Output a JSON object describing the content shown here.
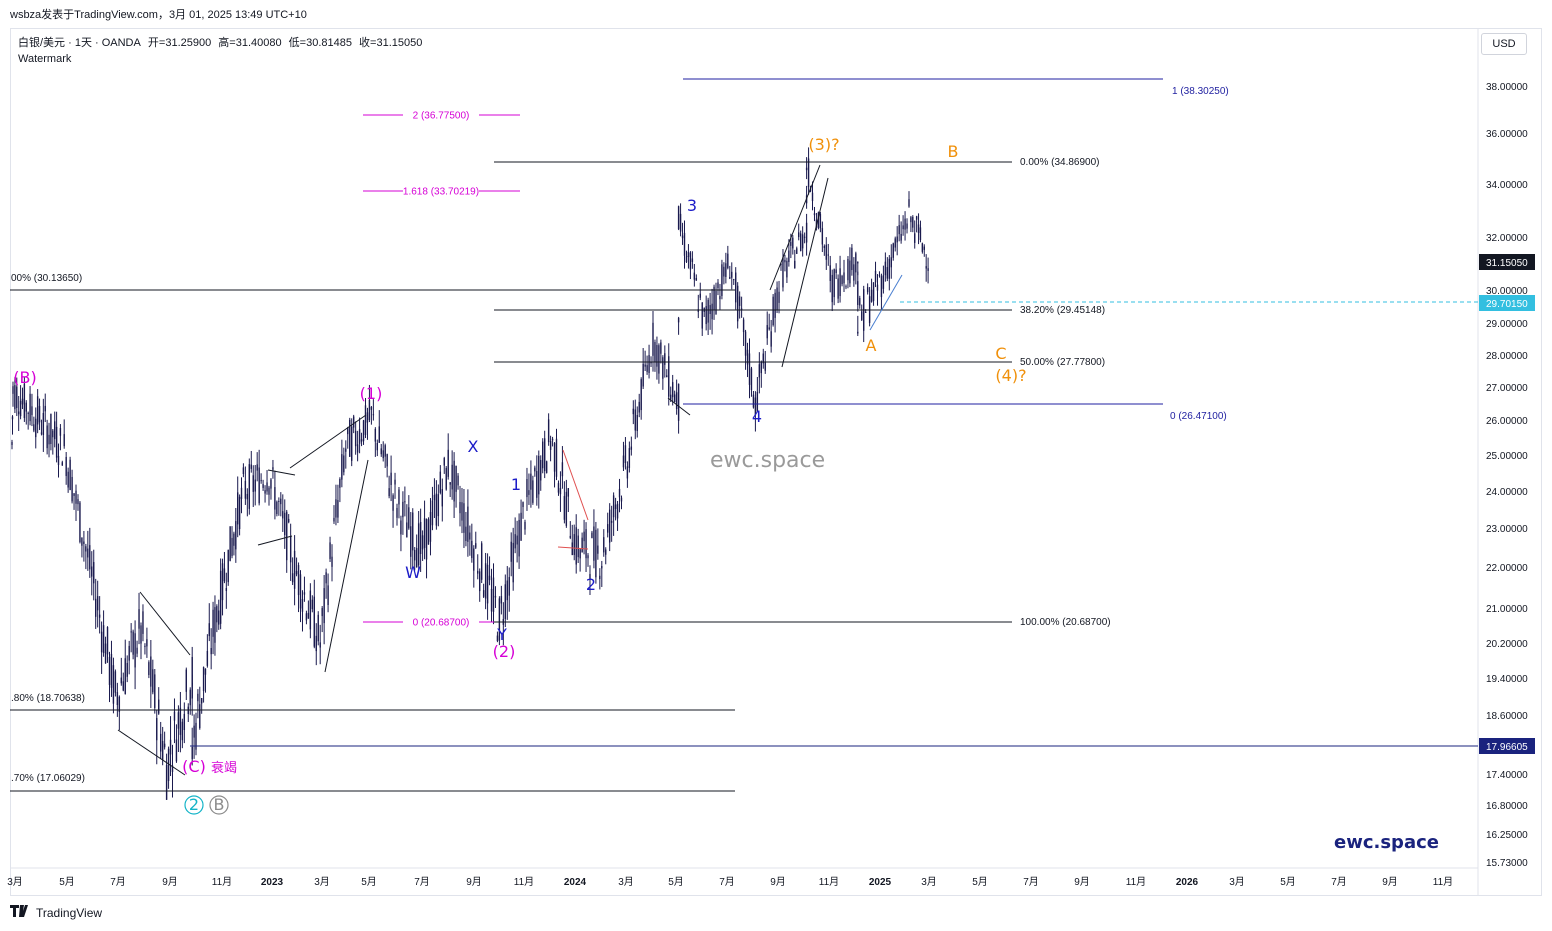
{
  "header": {
    "source_line": "wsbza发表于TradingView.com，3月 01, 2025 13:49 UTC+10"
  },
  "legend": {
    "symbol": "白银/美元 · 1天 · OANDA",
    "open": "开=31.25900",
    "high": "高=31.40080",
    "low": "低=30.81485",
    "close": "收=31.15050",
    "watermark_label": "Watermark"
  },
  "currency_button": "USD",
  "footer": {
    "logo_text": "TradingView",
    "icon": "tradingview-logo-icon"
  },
  "brand_text": "ewc.space",
  "center_watermark": "ewc.space",
  "colors": {
    "candles": "#1a1a4e",
    "fib_black": "#131722",
    "fib_blue": "#1f1fa0",
    "fib_magenta": "#d600d6",
    "wave_blue": "#1c1cc8",
    "wave_orange": "#f0900a",
    "wave_magenta": "#d600d6",
    "wave_teal": "#14b4c8",
    "wave_gray": "#8c8c8c",
    "hline_price": "#1a237e",
    "dashed_price": "#33bfe0"
  },
  "chart_data": {
    "type": "candlestick",
    "symbol": "白银/美元",
    "interval": "1天",
    "y_axis_ticks": [
      "38.00000",
      "36.00000",
      "34.00000",
      "32.00000",
      "30.00000",
      "29.00000",
      "28.00000",
      "27.00000",
      "26.00000",
      "25.00000",
      "24.00000",
      "23.00000",
      "22.00000",
      "21.00000",
      "20.20000",
      "19.40000",
      "18.60000",
      "17.40000",
      "16.80000",
      "16.25000",
      "15.73000"
    ],
    "x_axis_ticks": [
      "3月",
      "5月",
      "7月",
      "9月",
      "11月",
      "2023",
      "3月",
      "5月",
      "7月",
      "9月",
      "11月",
      "2024",
      "3月",
      "5月",
      "7月",
      "9月",
      "11月",
      "2025",
      "3月",
      "5月",
      "7月",
      "9月",
      "11月",
      "2026",
      "3月",
      "5月",
      "7月",
      "9月",
      "11月"
    ],
    "price_labels": [
      {
        "value": "31.15050",
        "style": "last"
      },
      {
        "value": "29.70150",
        "style": "dashed"
      },
      {
        "value": "17.96605",
        "style": "line"
      }
    ],
    "fib_levels": [
      {
        "text": "1 (38.30250)",
        "price": 38.3025,
        "color": "blue"
      },
      {
        "text": "2 (36.77500)",
        "price": 36.775,
        "color": "magenta"
      },
      {
        "text": "0.00% (34.86900)",
        "price": 34.869,
        "color": "black"
      },
      {
        "text": "1.618 (33.70219)",
        "price": 33.70219,
        "color": "magenta"
      },
      {
        "text": "00% (30.13650)",
        "price": 30.1365,
        "color": "black"
      },
      {
        "text": "38.20% (29.45148)",
        "price": 29.45148,
        "color": "black"
      },
      {
        "text": "50.00% (27.77800)",
        "price": 27.778,
        "color": "black"
      },
      {
        "text": "0 (26.47100)",
        "price": 26.471,
        "color": "blue"
      },
      {
        "text": "0 (20.68700)",
        "price": 20.687,
        "color": "magenta"
      },
      {
        "text": "100.00% (20.68700)",
        "price": 20.687,
        "color": "black"
      },
      {
        "text": ".80% (18.70638)",
        "price": 18.70638,
        "color": "black"
      },
      {
        "text": ".70% (17.06029)",
        "price": 17.06029,
        "color": "black"
      }
    ],
    "wave_labels": [
      {
        "text": "(B)",
        "color": "magenta"
      },
      {
        "text": "(1)",
        "color": "magenta"
      },
      {
        "text": "(2)",
        "color": "magenta"
      },
      {
        "text": "(C)",
        "color": "magenta"
      },
      {
        "text": "衰竭",
        "color": "magenta"
      },
      {
        "text": "(3)?",
        "color": "orange"
      },
      {
        "text": "(4)?",
        "color": "orange"
      },
      {
        "text": "A",
        "color": "orange"
      },
      {
        "text": "B",
        "color": "orange"
      },
      {
        "text": "C",
        "color": "orange"
      },
      {
        "text": "1",
        "color": "blue"
      },
      {
        "text": "2",
        "color": "blue"
      },
      {
        "text": "3",
        "color": "blue"
      },
      {
        "text": "4",
        "color": "blue"
      },
      {
        "text": "W",
        "color": "blue"
      },
      {
        "text": "X",
        "color": "blue"
      },
      {
        "text": "Y",
        "color": "blue"
      },
      {
        "text": "2",
        "color": "teal"
      },
      {
        "text": "B",
        "color": "gray"
      }
    ],
    "path_points": [
      {
        "date": "2022-03",
        "price": 25.3
      },
      {
        "date": "2022-03",
        "price": 26.9
      },
      {
        "date": "2022-05",
        "price": 25.2
      },
      {
        "date": "2022-06",
        "price": 22.0
      },
      {
        "date": "2022-07",
        "price": 19.0
      },
      {
        "date": "2022-08",
        "price": 20.5
      },
      {
        "date": "2022-09",
        "price": 17.6
      },
      {
        "date": "2022-10",
        "price": 19.5
      },
      {
        "date": "2022-10",
        "price": 18.0
      },
      {
        "date": "2022-12",
        "price": 24.0
      },
      {
        "date": "2023-01",
        "price": 24.5
      },
      {
        "date": "2023-02",
        "price": 22.0
      },
      {
        "date": "2023-03",
        "price": 20.2
      },
      {
        "date": "2023-04",
        "price": 25.2
      },
      {
        "date": "2023-05",
        "price": 26.1
      },
      {
        "date": "2023-06",
        "price": 23.6
      },
      {
        "date": "2023-07",
        "price": 22.4
      },
      {
        "date": "2023-08",
        "price": 24.7
      },
      {
        "date": "2023-09",
        "price": 22.5
      },
      {
        "date": "2023-10",
        "price": 20.7
      },
      {
        "date": "2023-11",
        "price": 23.5
      },
      {
        "date": "2023-12",
        "price": 25.5
      },
      {
        "date": "2024-01",
        "price": 22.5
      },
      {
        "date": "2024-02",
        "price": 22.3
      },
      {
        "date": "2024-03",
        "price": 24.8
      },
      {
        "date": "2024-04",
        "price": 28.5
      },
      {
        "date": "2024-05",
        "price": 26.5
      },
      {
        "date": "2024-05",
        "price": 32.5
      },
      {
        "date": "2024-06",
        "price": 29.0
      },
      {
        "date": "2024-07",
        "price": 31.0
      },
      {
        "date": "2024-08",
        "price": 26.5
      },
      {
        "date": "2024-09",
        "price": 30.5
      },
      {
        "date": "2024-10",
        "price": 32.3
      },
      {
        "date": "2024-10",
        "price": 34.8
      },
      {
        "date": "2024-11",
        "price": 30.2
      },
      {
        "date": "2024-12",
        "price": 31.2
      },
      {
        "date": "2024-12",
        "price": 29.0
      },
      {
        "date": "2025-01",
        "price": 30.5
      },
      {
        "date": "2025-02",
        "price": 32.8
      },
      {
        "date": "2025-02",
        "price": 31.15
      }
    ]
  }
}
